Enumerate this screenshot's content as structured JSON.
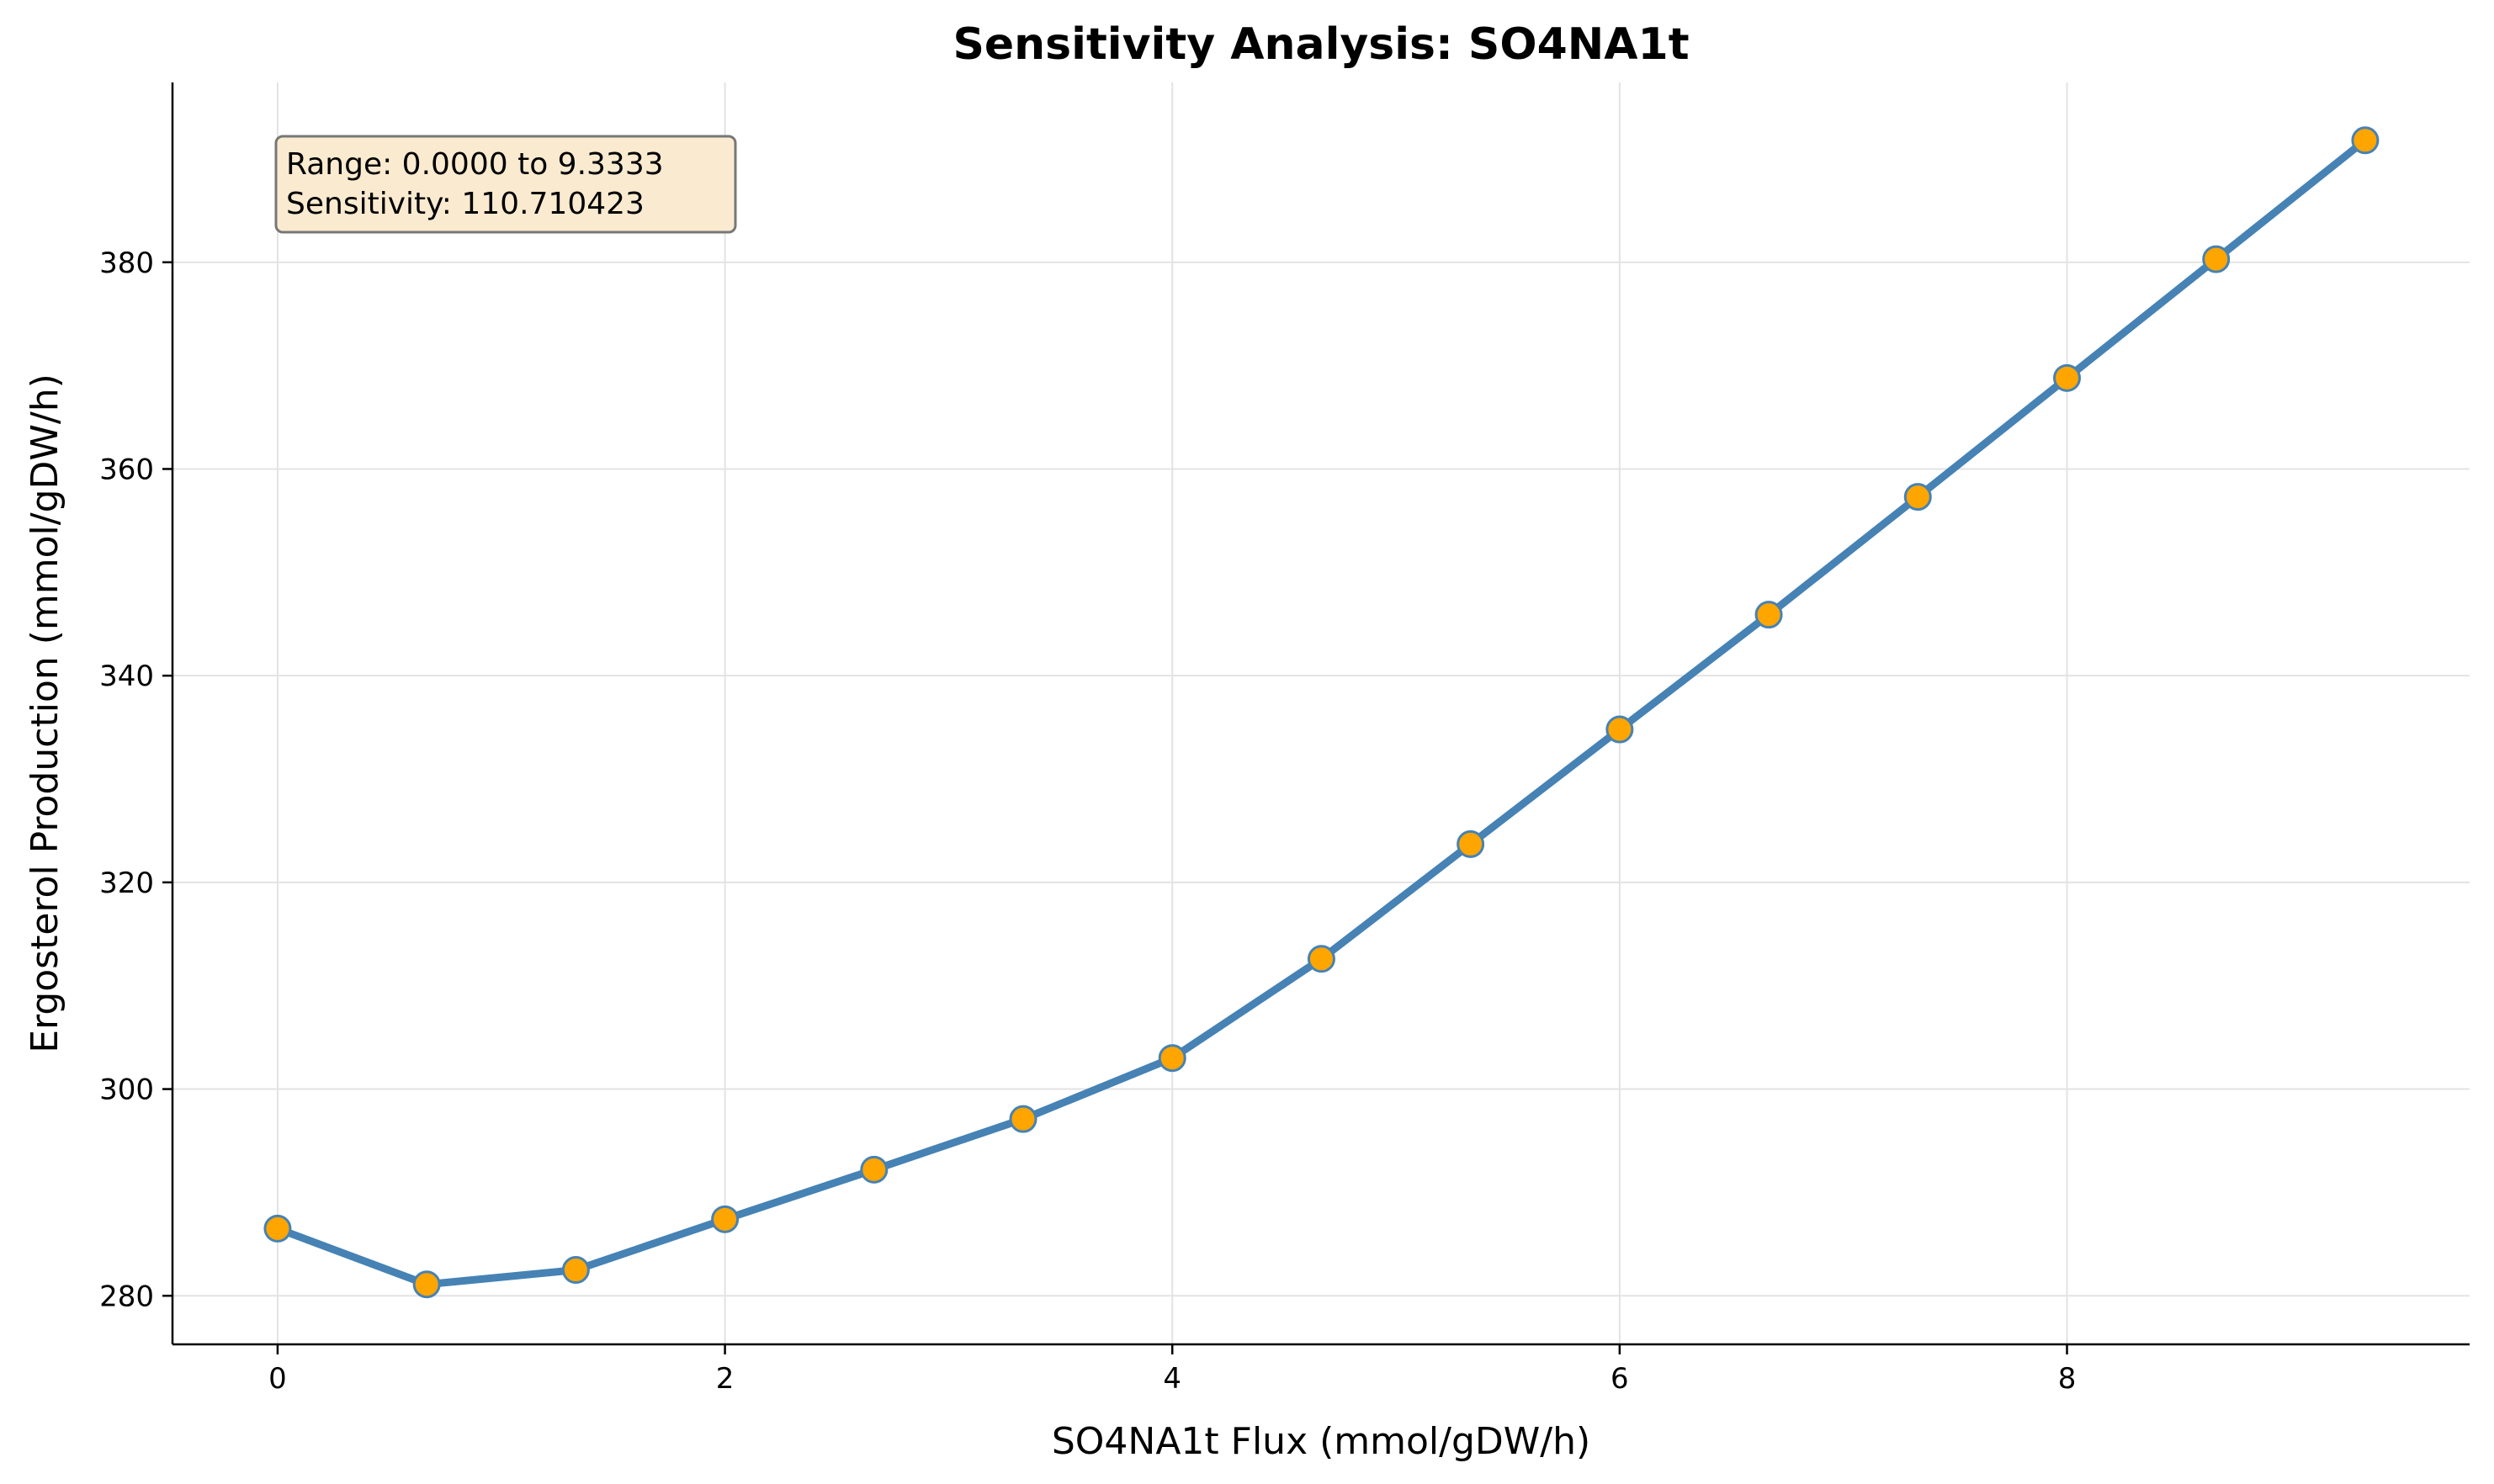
{
  "chart_data": {
    "type": "line",
    "title": "Sensitivity Analysis: SO4NA1t",
    "xlabel": "SO4NA1t Flux (mmol/gDW/h)",
    "ylabel": "Ergosterol Production (mmol/gDW/h)",
    "xlim": [
      -0.47,
      9.8
    ],
    "ylim": [
      275.3,
      397.4
    ],
    "xticks": [
      0,
      2,
      4,
      6,
      8
    ],
    "yticks": [
      280,
      300,
      320,
      340,
      360,
      380
    ],
    "grid": true,
    "series": [
      {
        "x": [
          0,
          0.6667,
          1.3333,
          2.0,
          2.6667,
          3.3333,
          4.0,
          4.6667,
          5.3333,
          6.0,
          6.6667,
          7.3333,
          8.0,
          8.6667,
          9.3333
        ],
        "values": [
          286.5,
          281.1,
          282.5,
          287.4,
          292.2,
          297.1,
          303.0,
          312.6,
          323.7,
          334.8,
          345.9,
          357.3,
          368.8,
          380.3,
          391.8
        ]
      }
    ],
    "line_color": "#4682b4",
    "marker_color": "#ffa500",
    "annotation": {
      "lines": [
        "Range: 0.0000 to 9.3333",
        "Sensitivity: 110.710423"
      ],
      "background": "#faebd0",
      "position": "top-left"
    }
  }
}
